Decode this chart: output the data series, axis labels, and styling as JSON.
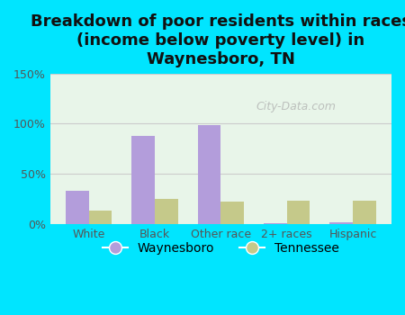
{
  "title": "Breakdown of poor residents within races\n(income below poverty level) in\nWaynesboro, TN",
  "categories": [
    "White",
    "Black",
    "Other race",
    "2+ races",
    "Hispanic"
  ],
  "waynesboro_values": [
    33,
    88,
    99,
    1,
    2
  ],
  "tennessee_values": [
    13,
    25,
    22,
    23,
    23
  ],
  "waynesboro_color": "#b39ddb",
  "tennessee_color": "#c5c98a",
  "background_outer": "#00e5ff",
  "background_inner": "#e8f5e9",
  "ylim": [
    0,
    150
  ],
  "yticks": [
    0,
    50,
    100,
    150
  ],
  "ytick_labels": [
    "0%",
    "50%",
    "100%",
    "150%"
  ],
  "grid_color": "#cccccc",
  "bar_width": 0.35,
  "legend_waynesboro": "Waynesboro",
  "legend_tennessee": "Tennessee",
  "watermark": "City-Data.com",
  "title_fontsize": 13,
  "tick_fontsize": 9,
  "legend_fontsize": 10
}
